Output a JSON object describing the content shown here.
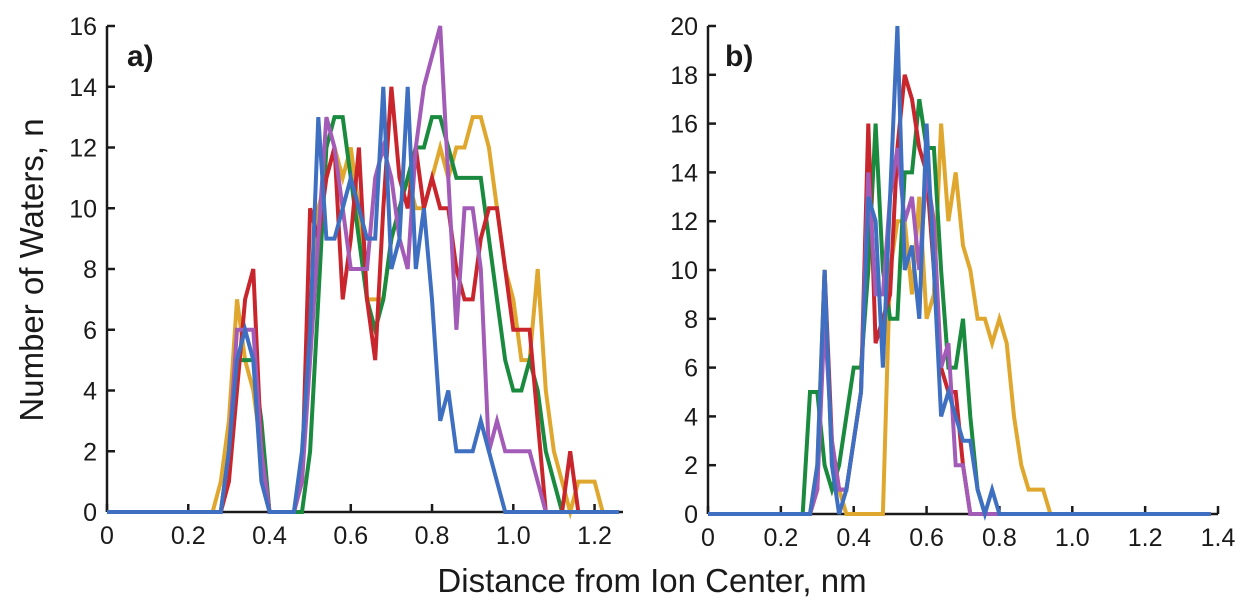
{
  "figure": {
    "xlabel": "Distance from Ion Center, nm",
    "ylabel": "Number of Waters, n"
  },
  "colors": {
    "orange": "#dfa72e",
    "green": "#1a8a3e",
    "red": "#c8262c",
    "purple": "#a35bb8",
    "blue": "#3e6fc0"
  },
  "chart_data": [
    {
      "type": "line",
      "panel_label": "a)",
      "xlabel": "",
      "ylabel": "",
      "xlim": [
        0,
        1.27
      ],
      "ylim": [
        0,
        16
      ],
      "x_ticks": [
        0,
        0.2,
        0.4,
        0.6,
        0.8,
        1.0,
        1.2
      ],
      "x_tick_labels": [
        "0",
        "0.2",
        "0.4",
        "0.6",
        "0.8",
        "1.0",
        "1.2"
      ],
      "y_ticks": [
        0,
        2,
        4,
        6,
        8,
        10,
        12,
        14,
        16
      ],
      "y_tick_labels": [
        "0",
        "2",
        "4",
        "6",
        "8",
        "10",
        "12",
        "14",
        "16"
      ],
      "x": [
        0,
        0.02,
        0.04,
        0.06,
        0.08,
        0.1,
        0.12,
        0.14,
        0.16,
        0.18,
        0.2,
        0.22,
        0.24,
        0.26,
        0.28,
        0.3,
        0.32,
        0.34,
        0.36,
        0.38,
        0.4,
        0.42,
        0.44,
        0.46,
        0.48,
        0.5,
        0.52,
        0.54,
        0.56,
        0.58,
        0.6,
        0.62,
        0.64,
        0.66,
        0.68,
        0.7,
        0.72,
        0.74,
        0.76,
        0.78,
        0.8,
        0.82,
        0.84,
        0.86,
        0.88,
        0.9,
        0.92,
        0.94,
        0.96,
        0.98,
        1.0,
        1.02,
        1.04,
        1.06,
        1.08,
        1.1,
        1.12,
        1.14,
        1.16,
        1.18,
        1.2,
        1.22,
        1.24,
        1.26
      ],
      "series": [
        {
          "color_key": "orange",
          "values": [
            0,
            0,
            0,
            0,
            0,
            0,
            0,
            0,
            0,
            0,
            0,
            0,
            0,
            0,
            1,
            3,
            7,
            5,
            4,
            2,
            0,
            0,
            0,
            0,
            1,
            6,
            10,
            11,
            12,
            11,
            12,
            10,
            7,
            7,
            7,
            9,
            10,
            11,
            10,
            10,
            11,
            12,
            11,
            12,
            12,
            13,
            13,
            12,
            10,
            8,
            7,
            5,
            5,
            8,
            4,
            2,
            1,
            0,
            1,
            1,
            1,
            0,
            0,
            0
          ]
        },
        {
          "color_key": "green",
          "values": [
            0,
            0,
            0,
            0,
            0,
            0,
            0,
            0,
            0,
            0,
            0,
            0,
            0,
            0,
            0,
            2,
            5,
            5,
            5,
            3,
            0,
            0,
            0,
            0,
            0,
            2,
            7,
            12,
            13,
            13,
            11,
            9,
            7,
            6,
            7,
            9,
            10,
            11,
            12,
            12,
            13,
            13,
            12,
            11,
            11,
            11,
            11,
            9,
            7,
            5,
            4,
            4,
            5,
            4,
            2,
            1,
            0,
            0,
            0,
            0,
            0,
            0,
            0,
            0
          ]
        },
        {
          "color_key": "red",
          "values": [
            0,
            0,
            0,
            0,
            0,
            0,
            0,
            0,
            0,
            0,
            0,
            0,
            0,
            0,
            0,
            1,
            4,
            7,
            8,
            2,
            0,
            0,
            0,
            0,
            1,
            10,
            9,
            11,
            12,
            7,
            9,
            12,
            7,
            5,
            10,
            14,
            11,
            10,
            12,
            10,
            11,
            10,
            10,
            8,
            7,
            7,
            9,
            10,
            10,
            8,
            6,
            6,
            6,
            3,
            0,
            0,
            0,
            2,
            0,
            0,
            0,
            0,
            0,
            0
          ]
        },
        {
          "color_key": "purple",
          "values": [
            0,
            0,
            0,
            0,
            0,
            0,
            0,
            0,
            0,
            0,
            0,
            0,
            0,
            0,
            0,
            2,
            6,
            6,
            6,
            2,
            0,
            0,
            0,
            0,
            1,
            5,
            9,
            13,
            12,
            10,
            8,
            8,
            8,
            11,
            12,
            11,
            9,
            8,
            12,
            14,
            15,
            16,
            11,
            6,
            10,
            10,
            8,
            2,
            3,
            2,
            2,
            2,
            2,
            1,
            0,
            0,
            0,
            0,
            0,
            0,
            0,
            0,
            0,
            0
          ]
        },
        {
          "color_key": "blue",
          "values": [
            0,
            0,
            0,
            0,
            0,
            0,
            0,
            0,
            0,
            0,
            0,
            0,
            0,
            0,
            0,
            2,
            5,
            6,
            5,
            1,
            0,
            0,
            0,
            0,
            2,
            6,
            13,
            9,
            9,
            10,
            11,
            10,
            9,
            9,
            14,
            8,
            9,
            14,
            8,
            10,
            7,
            3,
            4,
            2,
            2,
            2,
            3,
            2,
            1,
            0,
            0,
            0,
            0,
            0,
            0,
            0,
            0,
            0,
            0,
            0,
            0,
            0,
            0,
            0
          ]
        }
      ]
    },
    {
      "type": "line",
      "panel_label": "b)",
      "xlabel": "",
      "ylabel": "",
      "xlim": [
        0,
        1.4
      ],
      "ylim": [
        0,
        20
      ],
      "x_ticks": [
        0,
        0.2,
        0.4,
        0.6,
        0.8,
        1.0,
        1.2,
        1.4
      ],
      "x_tick_labels": [
        "0",
        "0.2",
        "0.4",
        "0.6",
        "0.8",
        "1.0",
        "1.2",
        "1.4"
      ],
      "y_ticks": [
        0,
        2,
        4,
        6,
        8,
        10,
        12,
        14,
        16,
        18,
        20
      ],
      "y_tick_labels": [
        "0",
        "2",
        "4",
        "6",
        "8",
        "10",
        "12",
        "14",
        "16",
        "18",
        "20"
      ],
      "x": [
        0,
        0.02,
        0.04,
        0.06,
        0.08,
        0.1,
        0.12,
        0.14,
        0.16,
        0.18,
        0.2,
        0.22,
        0.24,
        0.26,
        0.28,
        0.3,
        0.32,
        0.34,
        0.36,
        0.38,
        0.4,
        0.42,
        0.44,
        0.46,
        0.48,
        0.5,
        0.52,
        0.54,
        0.56,
        0.58,
        0.6,
        0.62,
        0.64,
        0.66,
        0.68,
        0.7,
        0.72,
        0.74,
        0.76,
        0.78,
        0.8,
        0.82,
        0.84,
        0.86,
        0.88,
        0.9,
        0.92,
        0.94,
        0.96,
        0.98,
        1.0,
        1.02,
        1.04,
        1.06,
        1.08,
        1.1,
        1.12,
        1.14,
        1.16,
        1.18,
        1.2,
        1.22,
        1.24,
        1.26,
        1.28,
        1.3,
        1.32,
        1.34,
        1.36,
        1.38
      ],
      "series": [
        {
          "color_key": "orange",
          "values": [
            0,
            0,
            0,
            0,
            0,
            0,
            0,
            0,
            0,
            0,
            0,
            0,
            0,
            0,
            0,
            2,
            10,
            2,
            1,
            0,
            0,
            0,
            0,
            0,
            0,
            10,
            12,
            12,
            9,
            13,
            8,
            9,
            16,
            12,
            14,
            11,
            10,
            8,
            8,
            7,
            8,
            7,
            4,
            2,
            1,
            1,
            1,
            0,
            0,
            0,
            0,
            0,
            0,
            0,
            0,
            0,
            0,
            0,
            0,
            0,
            0,
            0,
            0,
            0,
            0,
            0,
            0,
            0,
            0,
            0
          ]
        },
        {
          "color_key": "green",
          "values": [
            0,
            0,
            0,
            0,
            0,
            0,
            0,
            0,
            0,
            0,
            0,
            0,
            0,
            0,
            5,
            5,
            2,
            1,
            2,
            4,
            6,
            6,
            10,
            16,
            10,
            8,
            8,
            14,
            14,
            17,
            15,
            15,
            10,
            6,
            6,
            8,
            4,
            1,
            0,
            0,
            0,
            0,
            0,
            0,
            0,
            0,
            0,
            0,
            0,
            0,
            0,
            0,
            0,
            0,
            0,
            0,
            0,
            0,
            0,
            0,
            0,
            0,
            0,
            0,
            0,
            0,
            0,
            0,
            0,
            0
          ]
        },
        {
          "color_key": "red",
          "values": [
            0,
            0,
            0,
            0,
            0,
            0,
            0,
            0,
            0,
            0,
            0,
            0,
            0,
            0,
            0,
            1,
            10,
            3,
            1,
            1,
            3,
            5,
            16,
            7,
            8,
            9,
            15,
            18,
            17,
            15,
            14,
            10,
            6,
            5,
            5,
            2,
            0,
            0,
            0,
            0,
            0,
            0,
            0,
            0,
            0,
            0,
            0,
            0,
            0,
            0,
            0,
            0,
            0,
            0,
            0,
            0,
            0,
            0,
            0,
            0,
            0,
            0,
            0,
            0,
            0,
            0,
            0,
            0,
            0,
            0
          ]
        },
        {
          "color_key": "purple",
          "values": [
            0,
            0,
            0,
            0,
            0,
            0,
            0,
            0,
            0,
            0,
            0,
            0,
            0,
            0,
            0,
            1,
            8,
            3,
            1,
            1,
            3,
            5,
            14,
            9,
            9,
            13,
            15,
            12,
            13,
            10,
            14,
            12,
            6,
            7,
            2,
            2,
            0,
            0,
            0,
            0,
            0,
            0,
            0,
            0,
            0,
            0,
            0,
            0,
            0,
            0,
            0,
            0,
            0,
            0,
            0,
            0,
            0,
            0,
            0,
            0,
            0,
            0,
            0,
            0,
            0,
            0,
            0,
            0,
            0,
            0
          ]
        },
        {
          "color_key": "blue",
          "values": [
            0,
            0,
            0,
            0,
            0,
            0,
            0,
            0,
            0,
            0,
            0,
            0,
            0,
            0,
            0,
            2,
            10,
            2,
            0,
            1,
            3,
            5,
            13,
            12,
            6,
            13,
            20,
            10,
            11,
            8,
            16,
            10,
            4,
            5,
            4,
            3,
            3,
            1,
            0,
            1,
            0,
            0,
            0,
            0,
            0,
            0,
            0,
            0,
            0,
            0,
            0,
            0,
            0,
            0,
            0,
            0,
            0,
            0,
            0,
            0,
            0,
            0,
            0,
            0,
            0,
            0,
            0,
            0,
            0,
            0
          ]
        }
      ]
    }
  ]
}
